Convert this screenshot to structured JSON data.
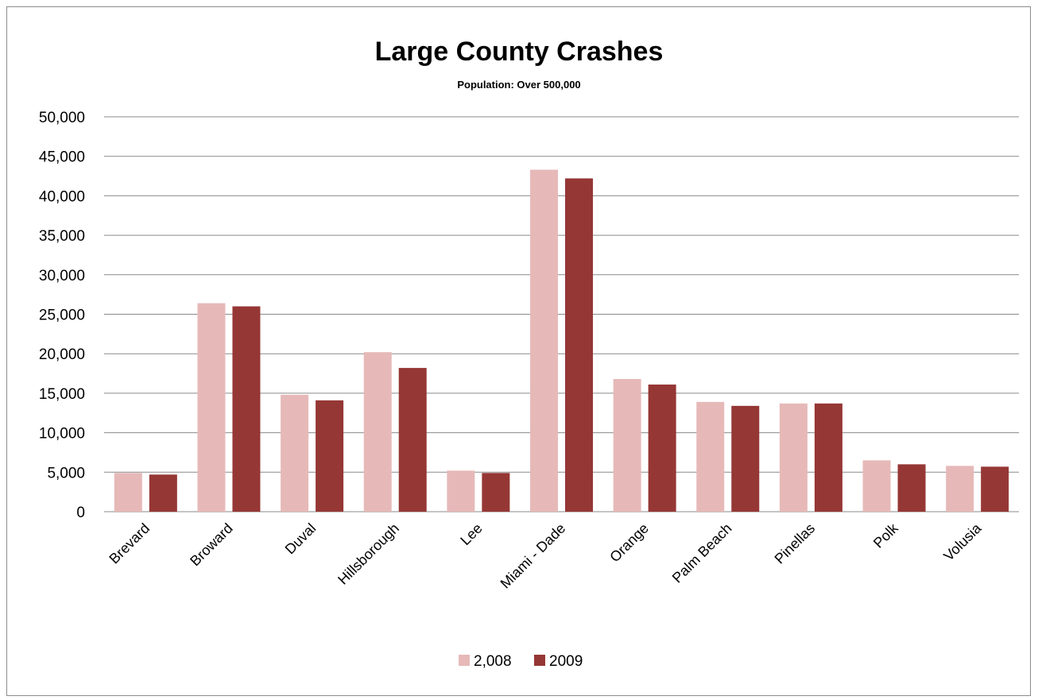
{
  "chart_data": {
    "type": "bar",
    "title": "Large County Crashes",
    "subtitle": "Population:  Over 500,000",
    "xlabel": "",
    "ylabel": "",
    "ylim": [
      0,
      50000
    ],
    "ytick_step": 5000,
    "yticks": [
      "0",
      "5,000",
      "10,000",
      "15,000",
      "20,000",
      "25,000",
      "30,000",
      "35,000",
      "40,000",
      "45,000",
      "50,000"
    ],
    "grid": true,
    "legend_position": "bottom",
    "categories": [
      "Brevard",
      "Broward",
      "Duval",
      "Hillsborough",
      "Lee",
      "Miami - Dade",
      "Orange",
      "Palm Beach",
      "Pinellas",
      "Polk",
      "Volusia"
    ],
    "series": [
      {
        "name": "2,008",
        "color": "#e6b9b8",
        "values": [
          4900,
          26400,
          14800,
          20200,
          5200,
          43300,
          16800,
          13900,
          13700,
          6500,
          5800
        ]
      },
      {
        "name": "2009",
        "color": "#953735",
        "values": [
          4700,
          26000,
          14100,
          18200,
          4900,
          42200,
          16100,
          13400,
          13700,
          6000,
          5700
        ]
      }
    ]
  }
}
